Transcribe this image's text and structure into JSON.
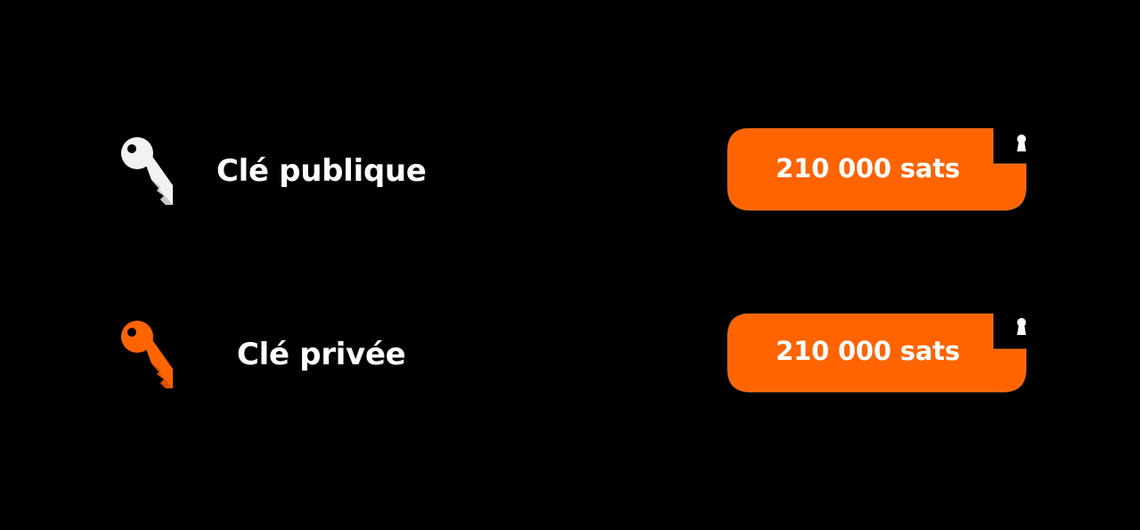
{
  "rows": [
    {
      "label": "Clé publique",
      "amount": "210 000 sats",
      "key_icon": "key-icon",
      "key_color": "#f2f2f2",
      "lock_icon": "keyhole-icon"
    },
    {
      "label": "Clé privée",
      "amount": "210 000 sats",
      "key_icon": "key-icon",
      "key_color": "#ff6400",
      "lock_icon": "keyhole-icon"
    }
  ],
  "colors": {
    "background": "#000000",
    "accent": "#ff6400",
    "text": "#ffffff"
  }
}
